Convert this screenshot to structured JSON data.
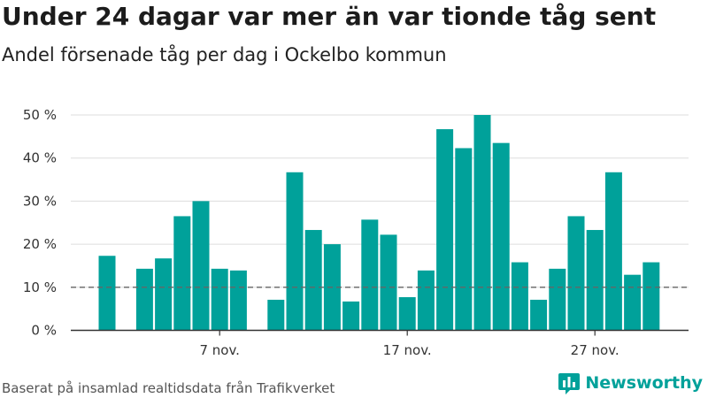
{
  "title": "Under 24 dagar var mer än var tionde tåg sent",
  "subtitle": "Andel försenade tåg per dag i Ockelbo kommun",
  "source": "Baserat på insamlad realtidsdata från Trafikverket",
  "brand": {
    "name": "Newsworthy",
    "icon": "newsworthy-logo-icon",
    "color": "#00a19a"
  },
  "colors": {
    "bar": "#00a19a",
    "grid": "#dddddd",
    "axis": "#333333",
    "reference": "#666666"
  },
  "chart_data": {
    "type": "bar",
    "x": [
      "1 nov.",
      "2 nov.",
      "3 nov.",
      "4 nov.",
      "5 nov.",
      "6 nov.",
      "7 nov.",
      "8 nov.",
      "9 nov.",
      "10 nov.",
      "11 nov.",
      "12 nov.",
      "13 nov.",
      "14 nov.",
      "15 nov.",
      "16 nov.",
      "17 nov.",
      "18 nov.",
      "19 nov.",
      "20 nov.",
      "21 nov.",
      "22 nov.",
      "23 nov.",
      "24 nov.",
      "25 nov.",
      "26 nov.",
      "27 nov.",
      "28 nov.",
      "29 nov.",
      "30 nov."
    ],
    "values": [
      17.3,
      null,
      14.3,
      16.7,
      26.5,
      30.0,
      14.3,
      13.9,
      null,
      7.1,
      36.7,
      23.3,
      20.0,
      6.7,
      25.7,
      22.2,
      7.7,
      13.9,
      46.7,
      42.3,
      50.0,
      43.5,
      15.8,
      7.1,
      14.3,
      26.5,
      23.3,
      36.7,
      12.9,
      15.8
    ],
    "xtick_labels": [
      "7 nov.",
      "17 nov.",
      "27 nov."
    ],
    "xtick_positions": [
      "7 nov.",
      "17 nov.",
      "27 nov."
    ],
    "yticks": [
      0,
      10,
      20,
      30,
      40,
      50
    ],
    "ytick_labels": [
      "0 %",
      "10 %",
      "20 %",
      "30 %",
      "40 %",
      "50 %"
    ],
    "ylim": [
      0,
      50
    ],
    "reference_line": {
      "value": 10,
      "style": "dashed"
    },
    "grid": true,
    "legend": false
  }
}
